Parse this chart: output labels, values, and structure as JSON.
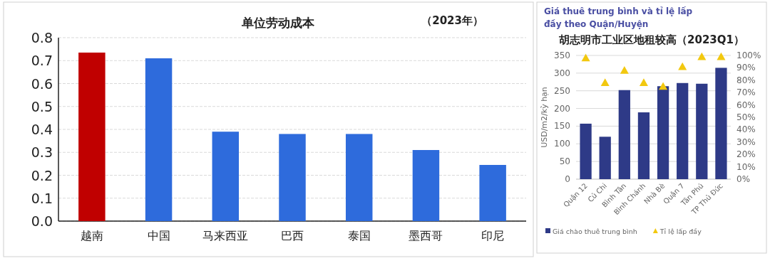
{
  "chart_data": [
    {
      "type": "bar",
      "title": "单位劳动成本",
      "annotations": [
        "（2023年）"
      ],
      "categories": [
        "越南",
        "中国",
        "马来西亚",
        "巴西",
        "泰国",
        "墨西哥",
        "印尼"
      ],
      "values": [
        0.735,
        0.71,
        0.39,
        0.38,
        0.38,
        0.31,
        0.245
      ],
      "colors": [
        "#c00000",
        "#2e6bdc",
        "#2e6bdc",
        "#2e6bdc",
        "#2e6bdc",
        "#2e6bdc",
        "#2e6bdc"
      ],
      "ylim": [
        0,
        0.8
      ],
      "yticks": [
        {
          "value": 0,
          "label": "0.0"
        },
        {
          "value": 0.1,
          "label": "0.1"
        },
        {
          "value": 0.2,
          "label": "0.2"
        },
        {
          "value": 0.3,
          "label": "0.3"
        },
        {
          "value": 0.4,
          "label": "0.4"
        },
        {
          "value": 0.5,
          "label": "0.5"
        },
        {
          "value": 0.6,
          "label": "0.6"
        },
        {
          "value": 0.7,
          "label": "0.7"
        },
        {
          "value": 0.8,
          "label": "0.8"
        }
      ],
      "grid": "y"
    },
    {
      "type": "bar",
      "subtitle": "Giá thuê trung bình và tỉ lệ lấp đầy theo Quận/Huyện",
      "title": "胡志明市工业区地租较高（2023Q1）",
      "categories": [
        "Quận 12",
        "Củ Chi",
        "Bình Tân",
        "Bình Chánh",
        "Nhà Bè",
        "Quận 7",
        "Tân Phú",
        "TP Thủ Đức"
      ],
      "series": [
        {
          "name": "Giá chào thuê trung bình",
          "color": "#2e3a87",
          "values": [
            157,
            120,
            252,
            189,
            263,
            272,
            270,
            315
          ]
        },
        {
          "name": "Tỉ lệ lấp đầy",
          "type": "scatter",
          "axis": "y2",
          "marker": "triangle",
          "color": "#f2c80f",
          "values": [
            98,
            78,
            88,
            78,
            75,
            91,
            99,
            99
          ]
        }
      ],
      "ylabel": "USD/m2/kỳ hạn",
      "ylim": [
        0,
        350
      ],
      "yticks": [
        0,
        50,
        100,
        150,
        200,
        250,
        300,
        350
      ],
      "y2lim": [
        0,
        100
      ],
      "y2ticks": [
        {
          "value": 0,
          "label": "0%"
        },
        {
          "value": 10,
          "label": "10%"
        },
        {
          "value": 20,
          "label": "20%"
        },
        {
          "value": 30,
          "label": "30%"
        },
        {
          "value": 40,
          "label": "40%"
        },
        {
          "value": 50,
          "label": "50%"
        },
        {
          "value": 60,
          "label": "60%"
        },
        {
          "value": 70,
          "label": "70%"
        },
        {
          "value": 80,
          "label": "80%"
        },
        {
          "value": 90,
          "label": "90%"
        },
        {
          "value": 100,
          "label": "100%"
        }
      ],
      "grid": "y",
      "legend": "bottom"
    }
  ]
}
